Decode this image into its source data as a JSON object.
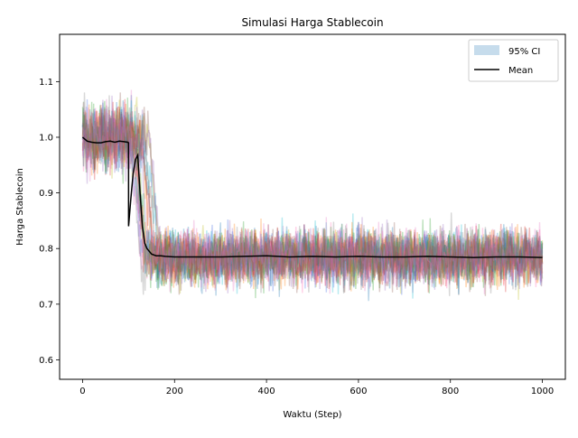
{
  "chart_data": {
    "type": "line",
    "title": "Simulasi Harga Stablecoin",
    "xlabel": "Waktu (Step)",
    "ylabel": "Harga Stablecoin",
    "xlim": [
      -50,
      1050
    ],
    "ylim": [
      0.565,
      1.185
    ],
    "xticks": [
      0,
      200,
      400,
      600,
      800,
      1000
    ],
    "yticks": [
      0.6,
      0.7,
      0.8,
      0.9,
      1.0,
      1.1
    ],
    "ytick_labels": [
      "0.6",
      "0.7",
      "0.8",
      "0.9",
      "1.0",
      "1.1"
    ],
    "grid": false,
    "legend": {
      "placement": "top-right",
      "entries": [
        {
          "label": "95% CI",
          "kind": "band",
          "color": "#c6dcec"
        },
        {
          "label": "Mean",
          "kind": "line",
          "color": "#000000"
        }
      ]
    },
    "simulated_paths": {
      "count": 20,
      "opacity": 0.3,
      "colors": [
        "#1f77b4",
        "#ff7f0e",
        "#2ca02c",
        "#d62728",
        "#9467bd",
        "#8c564b",
        "#e377c2",
        "#7f7f7f",
        "#bcbd22",
        "#17becf",
        "#ff69b4",
        "#4169e1"
      ],
      "regime_before_peg_break": {
        "x_range": [
          0,
          100
        ],
        "center": 1.0,
        "spread": [
          0.88,
          1.12
        ]
      },
      "regime_after_peg_break": {
        "x_range": [
          150,
          1000
        ],
        "center": 0.785,
        "spread": [
          0.65,
          0.9
        ]
      }
    },
    "series": [
      {
        "name": "Mean",
        "color": "#000000",
        "x": [
          0,
          10,
          20,
          30,
          40,
          50,
          60,
          70,
          80,
          90,
          98,
          100,
          100,
          105,
          110,
          115,
          120,
          125,
          130,
          135,
          140,
          150,
          160,
          170,
          180,
          200,
          250,
          300,
          350,
          400,
          450,
          500,
          550,
          600,
          650,
          700,
          750,
          800,
          850,
          900,
          950,
          1000
        ],
        "y": [
          1.0,
          0.993,
          0.991,
          0.99,
          0.99,
          0.992,
          0.993,
          0.991,
          0.993,
          0.992,
          0.991,
          0.99,
          0.84,
          0.89,
          0.935,
          0.96,
          0.968,
          0.9,
          0.84,
          0.81,
          0.8,
          0.79,
          0.787,
          0.787,
          0.786,
          0.785,
          0.785,
          0.785,
          0.786,
          0.787,
          0.785,
          0.786,
          0.785,
          0.786,
          0.785,
          0.785,
          0.786,
          0.785,
          0.784,
          0.785,
          0.785,
          0.784
        ]
      }
    ]
  }
}
